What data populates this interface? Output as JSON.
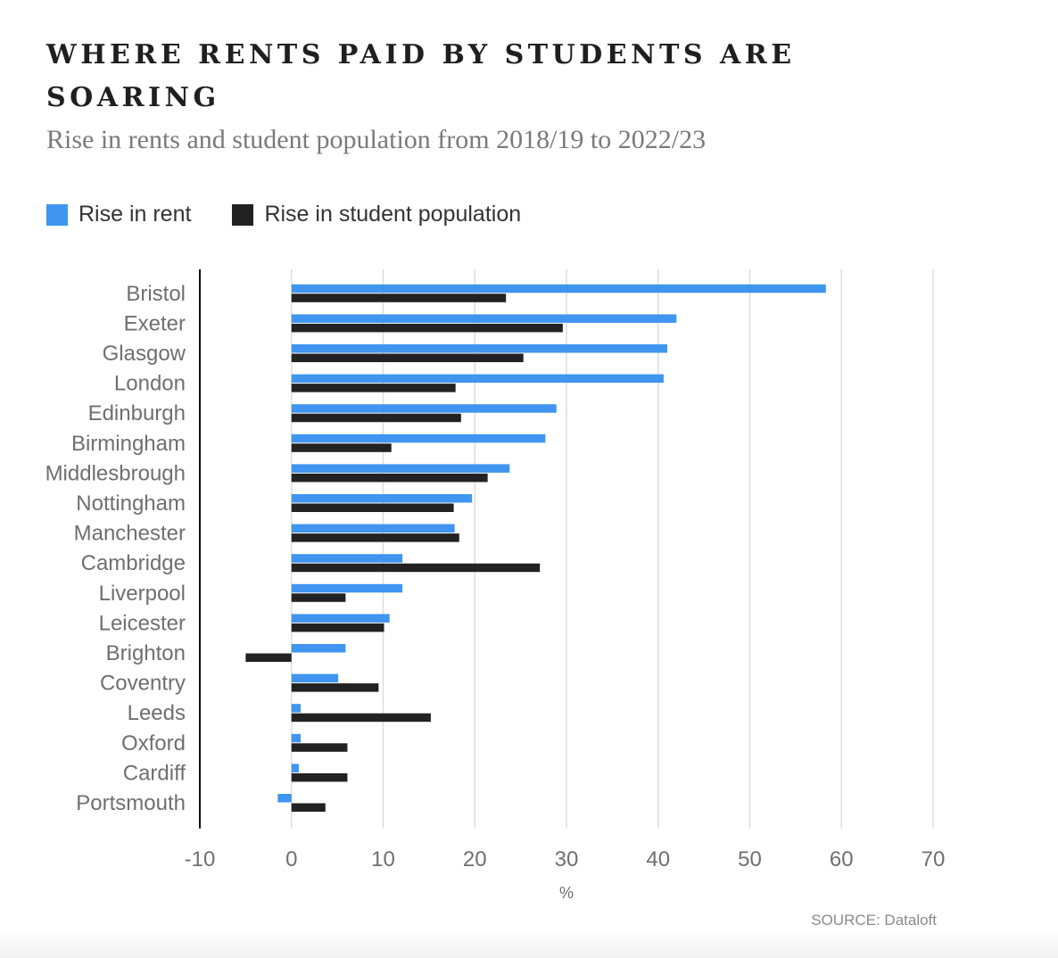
{
  "title": "WHERE RENTS PAID BY STUDENTS ARE SOARING",
  "subtitle": "Rise in rents and student population from 2018/19 to 2022/23",
  "source": "SOURCE: Dataloft",
  "colors": {
    "rent": "#3f95ef",
    "population": "#222222",
    "grid": "#dddddd",
    "text": "#6f6f6f"
  },
  "chart_data": {
    "type": "bar",
    "orientation": "horizontal",
    "categories": [
      "Bristol",
      "Exeter",
      "Glasgow",
      "London",
      "Edinburgh",
      "Birmingham",
      "Middlesbrough",
      "Nottingham",
      "Manchester",
      "Cambridge",
      "Liverpool",
      "Leicester",
      "Brighton",
      "Coventry",
      "Leeds",
      "Oxford",
      "Cardiff",
      "Portsmouth"
    ],
    "series": [
      {
        "name": "Rise in rent",
        "values": [
          58.3,
          42.0,
          41.0,
          40.6,
          28.9,
          27.7,
          23.8,
          19.7,
          17.8,
          12.1,
          12.1,
          10.7,
          5.9,
          5.1,
          1.0,
          1.0,
          0.8,
          -1.5
        ]
      },
      {
        "name": "Rise in student population",
        "values": [
          23.4,
          29.6,
          25.3,
          17.9,
          18.5,
          10.9,
          21.4,
          17.7,
          18.3,
          27.1,
          5.9,
          10.1,
          -5.0,
          9.5,
          15.2,
          6.1,
          6.1,
          3.7
        ]
      }
    ],
    "xlim": [
      -10,
      70
    ],
    "xticks": [
      -10,
      0,
      10,
      20,
      30,
      40,
      50,
      60,
      70
    ],
    "xlabel": "%",
    "ylabel": "",
    "grid": true,
    "legend": "top-left"
  }
}
